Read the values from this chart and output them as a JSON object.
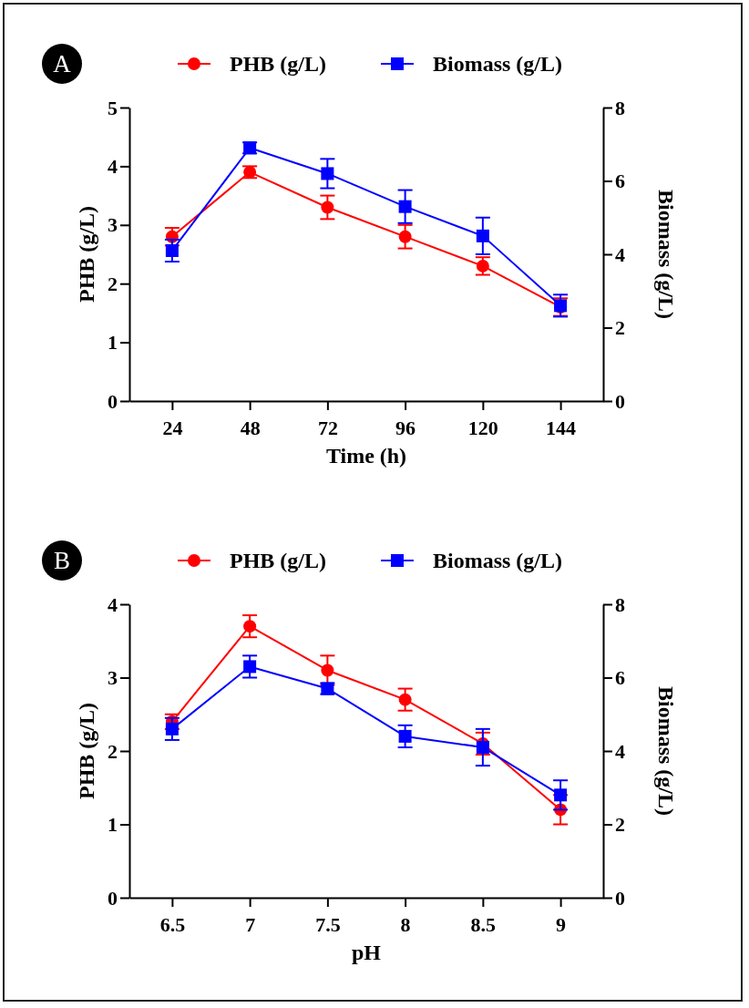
{
  "chart_data": [
    {
      "type": "line",
      "title": "A",
      "xlabel": "Time (h)",
      "ylabel": "PHB (g/L)",
      "y2label": "Biomass (g/L)",
      "categories": [
        "24",
        "48",
        "72",
        "96",
        "120",
        "144"
      ],
      "ylim": [
        0,
        5
      ],
      "yticks": [
        0,
        1,
        2,
        3,
        4,
        5
      ],
      "y2lim": [
        0,
        8
      ],
      "y2ticks": [
        0,
        2,
        4,
        6,
        8
      ],
      "legend": "top",
      "grid": false,
      "series": [
        {
          "name": "PHB (g/L)",
          "color": "#ff0000",
          "marker": "circle",
          "values": [
            2.8,
            3.9,
            3.3,
            2.8,
            2.3,
            1.6
          ],
          "errors": [
            0.15,
            0.1,
            0.2,
            0.2,
            0.15,
            0.15
          ]
        },
        {
          "name": "Biomass (g/L)",
          "color": "#0000ff",
          "marker": "square",
          "axis": "y2",
          "values": [
            4.1,
            6.9,
            6.2,
            5.3,
            4.5,
            2.6
          ],
          "errors": [
            0.3,
            0.15,
            0.4,
            0.45,
            0.5,
            0.3
          ]
        }
      ]
    },
    {
      "type": "line",
      "title": "B",
      "xlabel": "pH",
      "ylabel": "PHB (g/L)",
      "y2label": "Biomass (g/L)",
      "categories": [
        "6.5",
        "7",
        "7.5",
        "8",
        "8.5",
        "9"
      ],
      "ylim": [
        0,
        4
      ],
      "yticks": [
        0,
        1,
        2,
        3,
        4
      ],
      "y2lim": [
        0,
        8
      ],
      "y2ticks": [
        0,
        2,
        4,
        6,
        8
      ],
      "legend": "top",
      "grid": false,
      "series": [
        {
          "name": "PHB (g/L)",
          "color": "#ff0000",
          "marker": "circle",
          "values": [
            2.4,
            3.7,
            3.1,
            2.7,
            2.1,
            1.2
          ],
          "errors": [
            0.1,
            0.15,
            0.2,
            0.15,
            0.15,
            0.2
          ]
        },
        {
          "name": "Biomass (g/L)",
          "color": "#0000ff",
          "marker": "square",
          "axis": "y2",
          "values": [
            4.6,
            6.3,
            5.7,
            4.4,
            4.1,
            2.8
          ],
          "errors": [
            0.3,
            0.3,
            0.15,
            0.3,
            0.5,
            0.4
          ]
        }
      ]
    }
  ]
}
